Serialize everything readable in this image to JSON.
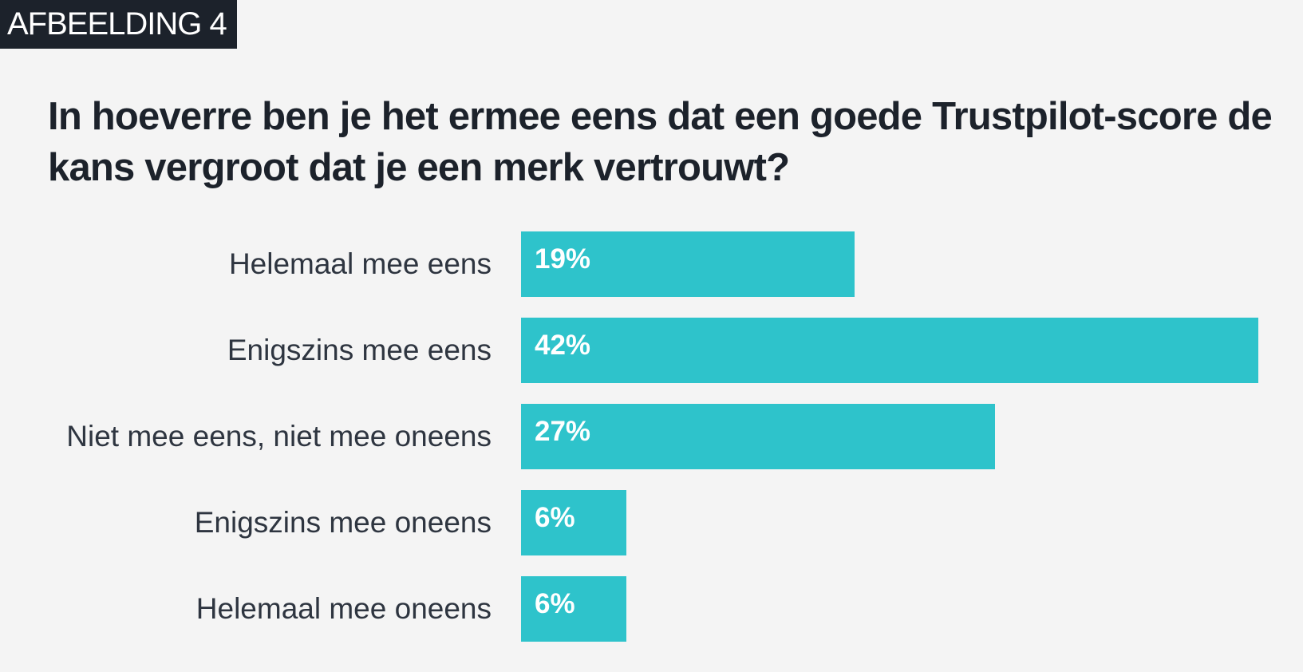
{
  "figure_label": "AFBEELDING 4",
  "colors": {
    "bar": "#2ec3cb",
    "background": "#f4f4f4",
    "text": "#1c222b"
  },
  "chart_data": {
    "type": "bar",
    "orientation": "horizontal",
    "title": "In hoeverre ben je het ermee eens dat een goede Trustpilot-score de kans vergroot dat je een merk vertrouwt?",
    "xlabel": "",
    "ylabel": "",
    "xlim": [
      0,
      42
    ],
    "grid": false,
    "categories": [
      "Helemaal mee eens",
      "Enigszins mee eens",
      "Niet mee eens, niet mee oneens",
      "Enigszins mee oneens",
      "Helemaal mee oneens"
    ],
    "values": [
      19,
      42,
      27,
      6,
      6
    ],
    "value_labels": [
      "19%",
      "42%",
      "27%",
      "6%",
      "6%"
    ]
  }
}
